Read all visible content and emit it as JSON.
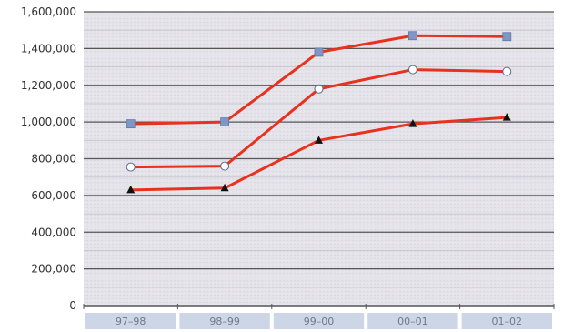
{
  "chart_data": {
    "type": "line",
    "categories": [
      "97–98",
      "98–99",
      "99–00",
      "00–01",
      "01–02"
    ],
    "y_ticks": [
      "0",
      "200,000",
      "400,000",
      "600,000",
      "800,000",
      "1,000,000",
      "1,200,000",
      "1,400,000",
      "1,600,000"
    ],
    "ylim": [
      0,
      1600000
    ],
    "grid": true,
    "legend": "none",
    "series": [
      {
        "values": [
          990000,
          1000000,
          1380000,
          1470000,
          1465000
        ],
        "marker": "square",
        "line_color": "#e8321e",
        "marker_color": "#7f97c4"
      },
      {
        "values": [
          755000,
          760000,
          1180000,
          1285000,
          1275000
        ],
        "marker": "circle",
        "line_color": "#e8321e",
        "marker_color": "#ffffff"
      },
      {
        "values": [
          630000,
          640000,
          900000,
          990000,
          1025000
        ],
        "marker": "triangle",
        "line_color": "#e8321e",
        "marker_color": "#111111"
      }
    ],
    "colors": {
      "plot_bg": "#e4e3ea",
      "grid_major": "#555555",
      "grid_minor": "#c9c8cf",
      "category_band": "#cdd6e6"
    }
  }
}
